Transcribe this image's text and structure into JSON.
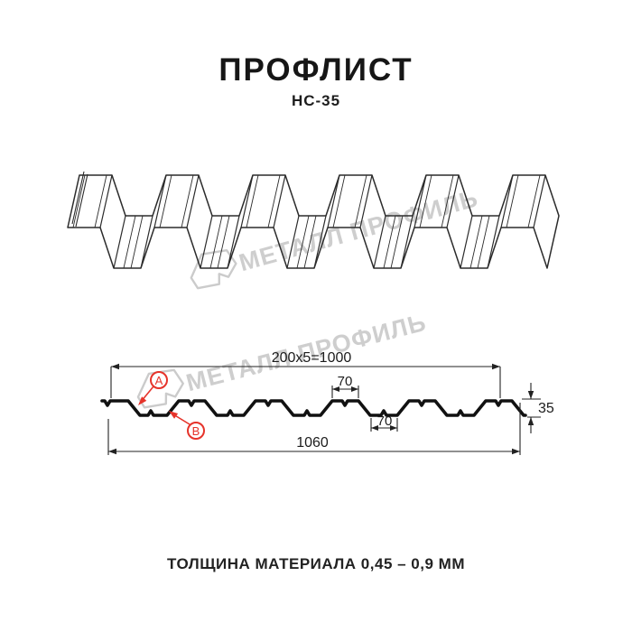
{
  "header": {
    "title": "ПРОФЛИСТ",
    "subtitle": "НС-35"
  },
  "watermark": {
    "brand": "МЕТАЛЛ ПРОФИЛЬ"
  },
  "section_view": {
    "dim_module": "200x5=1000",
    "dim_top_flute": "70",
    "dim_bottom_flute": "70",
    "dim_height": "35",
    "dim_overall_width": "1060",
    "callout_a": "А",
    "callout_b": "В"
  },
  "footer": {
    "note": "ТОЛЩИНА МАТЕРИАЛА 0,45 – 0,9 ММ"
  },
  "colors": {
    "line": "#1a1a1a",
    "accent_red": "#e6332a",
    "watermark_gray": "#c9c9c9",
    "background": "#ffffff"
  }
}
